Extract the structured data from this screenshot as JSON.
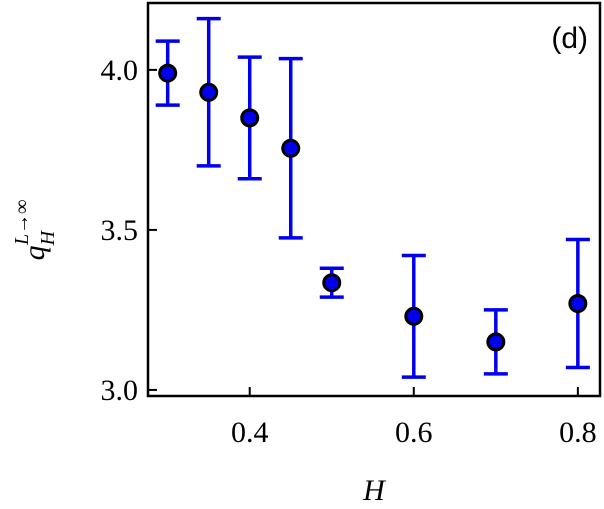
{
  "chart_data": {
    "type": "scatter",
    "annotation": "(d)",
    "xlabel": "H",
    "ylabel": {
      "base": "q",
      "sub": "H",
      "sup": "L→∞"
    },
    "x": [
      0.3,
      0.35,
      0.4,
      0.45,
      0.5,
      0.6,
      0.7,
      0.8
    ],
    "series": [
      {
        "color": "#0000ee",
        "values": [
          3.99,
          3.93,
          3.85,
          3.755,
          3.335,
          3.23,
          3.15,
          3.27
        ],
        "errors": [
          0.1,
          0.23,
          0.19,
          0.28,
          0.045,
          0.19,
          0.1,
          0.2
        ]
      }
    ],
    "xlim": [
      0.276,
      0.827
    ],
    "ylim": [
      2.981,
      4.209
    ],
    "xticks": [
      0.4,
      0.6,
      0.8
    ],
    "yticks": [
      {
        "value": 3.0,
        "label": "3.0"
      },
      {
        "value": 3.5,
        "label": "3.5"
      },
      {
        "value": 4.0,
        "label": "4.0"
      }
    ]
  }
}
